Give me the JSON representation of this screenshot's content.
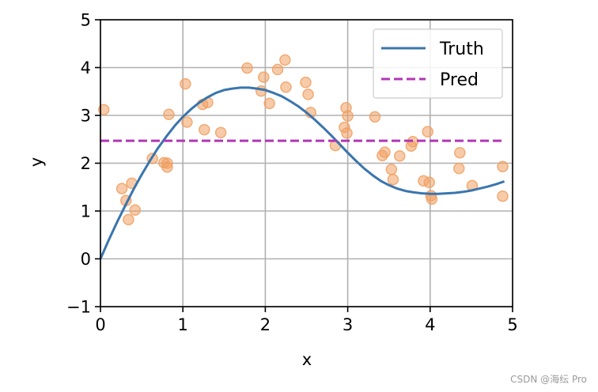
{
  "chart_data": {
    "type": "line",
    "title": "",
    "xlabel": "x",
    "ylabel": "y",
    "xlim": [
      0,
      5
    ],
    "ylim": [
      -1,
      5
    ],
    "xticks": [
      0,
      1,
      2,
      3,
      4,
      5
    ],
    "yticks": [
      -1,
      0,
      1,
      2,
      3,
      4,
      5
    ],
    "xtick_labels": [
      "0",
      "1",
      "2",
      "3",
      "4",
      "5"
    ],
    "ytick_labels": [
      "−1",
      "0",
      "1",
      "2",
      "3",
      "4",
      "5"
    ],
    "grid": true,
    "legend_position": "top-right",
    "series": [
      {
        "name": "Truth",
        "style": "solid",
        "color": "#3a75ae",
        "x": [
          0,
          0.1,
          0.2,
          0.3,
          0.4,
          0.5,
          0.6,
          0.7,
          0.8,
          0.9,
          1.0,
          1.1,
          1.2,
          1.3,
          1.4,
          1.5,
          1.6,
          1.7,
          1.8,
          1.9,
          2.0,
          2.1,
          2.2,
          2.3,
          2.4,
          2.5,
          2.6,
          2.7,
          2.8,
          2.9,
          3.0,
          3.1,
          3.2,
          3.3,
          3.4,
          3.5,
          3.6,
          3.7,
          3.8,
          3.9,
          4.0,
          4.1,
          4.2,
          4.3,
          4.4,
          4.5,
          4.6,
          4.7,
          4.8,
          4.9
        ],
        "y": [
          0.0,
          0.39,
          0.76,
          1.11,
          1.45,
          1.76,
          2.05,
          2.32,
          2.56,
          2.78,
          2.97,
          3.13,
          3.27,
          3.38,
          3.47,
          3.53,
          3.56,
          3.58,
          3.58,
          3.56,
          3.53,
          3.47,
          3.4,
          3.3,
          3.19,
          3.06,
          2.91,
          2.75,
          2.58,
          2.4,
          2.22,
          2.05,
          1.89,
          1.75,
          1.63,
          1.54,
          1.47,
          1.42,
          1.39,
          1.37,
          1.36,
          1.36,
          1.37,
          1.38,
          1.4,
          1.43,
          1.47,
          1.51,
          1.56,
          1.62
        ]
      },
      {
        "name": "Pred",
        "style": "dashed",
        "color": "#b236b6",
        "x": [
          0,
          4.9
        ],
        "y": [
          2.47,
          2.47
        ]
      }
    ],
    "scatter": {
      "color": "#f0a063",
      "points": [
        [
          0.04,
          3.12
        ],
        [
          0.26,
          1.47
        ],
        [
          0.31,
          1.22
        ],
        [
          0.34,
          0.82
        ],
        [
          0.38,
          1.58
        ],
        [
          0.42,
          1.02
        ],
        [
          0.63,
          2.1
        ],
        [
          0.77,
          2.01
        ],
        [
          0.81,
          2.0
        ],
        [
          0.81,
          1.92
        ],
        [
          0.83,
          3.02
        ],
        [
          1.03,
          3.66
        ],
        [
          1.05,
          2.86
        ],
        [
          1.24,
          3.23
        ],
        [
          1.26,
          2.7
        ],
        [
          1.3,
          3.27
        ],
        [
          1.46,
          2.64
        ],
        [
          1.78,
          3.99
        ],
        [
          1.95,
          3.51
        ],
        [
          1.98,
          3.8
        ],
        [
          2.05,
          3.25
        ],
        [
          2.15,
          3.96
        ],
        [
          2.24,
          4.16
        ],
        [
          2.25,
          3.59
        ],
        [
          2.49,
          3.69
        ],
        [
          2.52,
          3.44
        ],
        [
          2.55,
          3.06
        ],
        [
          2.85,
          2.37
        ],
        [
          2.96,
          2.75
        ],
        [
          2.98,
          3.16
        ],
        [
          2.99,
          2.63
        ],
        [
          3.0,
          2.99
        ],
        [
          3.33,
          2.97
        ],
        [
          3.42,
          2.16
        ],
        [
          3.45,
          2.23
        ],
        [
          3.53,
          1.87
        ],
        [
          3.55,
          1.66
        ],
        [
          3.63,
          2.15
        ],
        [
          3.77,
          2.36
        ],
        [
          3.79,
          2.45
        ],
        [
          3.92,
          1.63
        ],
        [
          3.97,
          2.66
        ],
        [
          3.99,
          1.6
        ],
        [
          4.01,
          1.32
        ],
        [
          4.02,
          1.25
        ],
        [
          4.35,
          1.89
        ],
        [
          4.36,
          2.22
        ],
        [
          4.51,
          1.53
        ],
        [
          4.88,
          1.93
        ],
        [
          4.88,
          1.31
        ]
      ]
    }
  },
  "watermark": "CSDN @海纭 Pro"
}
